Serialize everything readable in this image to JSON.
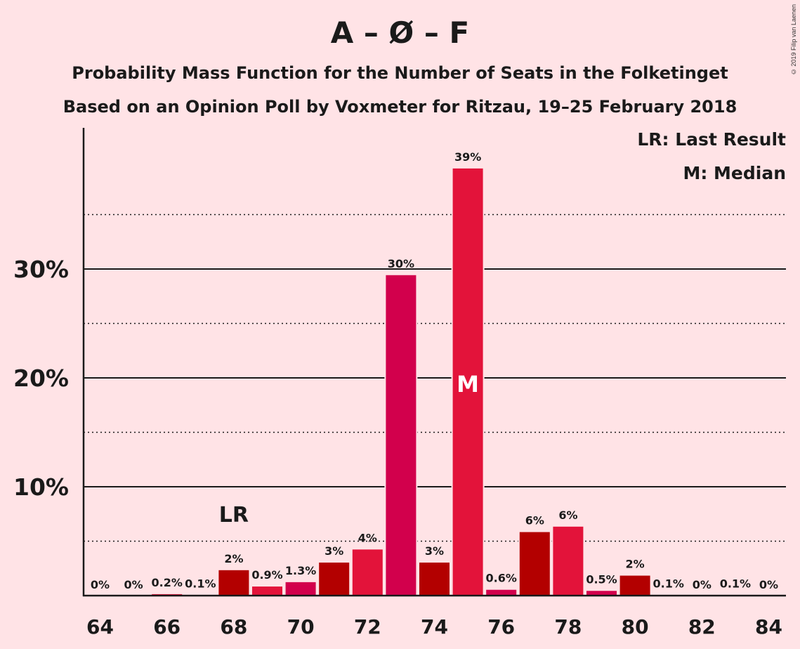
{
  "header": {
    "title": "A – Ø – F",
    "subtitle1": "Probability Mass Function for the Number of Seats in the Folketinget",
    "subtitle2": "Based on an Opinion Poll by Voxmeter for Ritzau, 19–25 February 2018",
    "copyright": "© 2019 Filip van Laenen"
  },
  "legend": {
    "last_result": "LR: Last Result",
    "median": "M: Median"
  },
  "colors": {
    "background": "#FFE3E6",
    "bar_dark": "#B30000",
    "bar_red": "#E3133A",
    "bar_magenta": "#D2004C"
  },
  "chart_data": {
    "type": "bar",
    "title": "A – Ø – F",
    "xlabel": "",
    "ylabel": "",
    "x": [
      64,
      65,
      66,
      67,
      68,
      69,
      70,
      71,
      72,
      73,
      74,
      75,
      76,
      77,
      78,
      79,
      80,
      81,
      82,
      83,
      84
    ],
    "x_tick_labels": [
      "64",
      "66",
      "68",
      "70",
      "72",
      "74",
      "76",
      "78",
      "80",
      "82",
      "84"
    ],
    "values": [
      0,
      0,
      0.2,
      0.1,
      2.4,
      0.9,
      1.3,
      3.1,
      4.3,
      29.5,
      3.1,
      39.3,
      0.6,
      5.9,
      6.4,
      0.5,
      1.9,
      0.1,
      0,
      0.1,
      0
    ],
    "labels": [
      "0%",
      "0%",
      "0.2%",
      "0.1%",
      "2%",
      "0.9%",
      "1.3%",
      "3%",
      "4%",
      "30%",
      "3%",
      "39%",
      "0.6%",
      "6%",
      "6%",
      "0.5%",
      "2%",
      "0.1%",
      "0%",
      "0.1%",
      "0%"
    ],
    "bar_colors": [
      "#E3133A",
      "#B30000",
      "#E3133A",
      "#B30000",
      "#B30000",
      "#E3133A",
      "#D2004C",
      "#B30000",
      "#E3133A",
      "#D2004C",
      "#B30000",
      "#E3133A",
      "#D2004C",
      "#B30000",
      "#E3133A",
      "#D2004C",
      "#B30000",
      "#E3133A",
      "#D2004C",
      "#B30000",
      "#E3133A"
    ],
    "ylim": [
      0,
      43
    ],
    "y_major_ticks": [
      10,
      20,
      30
    ],
    "y_tick_labels": [
      "10%",
      "20%",
      "30%"
    ],
    "y_minor_gridlines": [
      5,
      15,
      25,
      35
    ],
    "last_result": {
      "x": 68,
      "label": "LR"
    },
    "median": {
      "x": 75,
      "label": "M"
    }
  }
}
